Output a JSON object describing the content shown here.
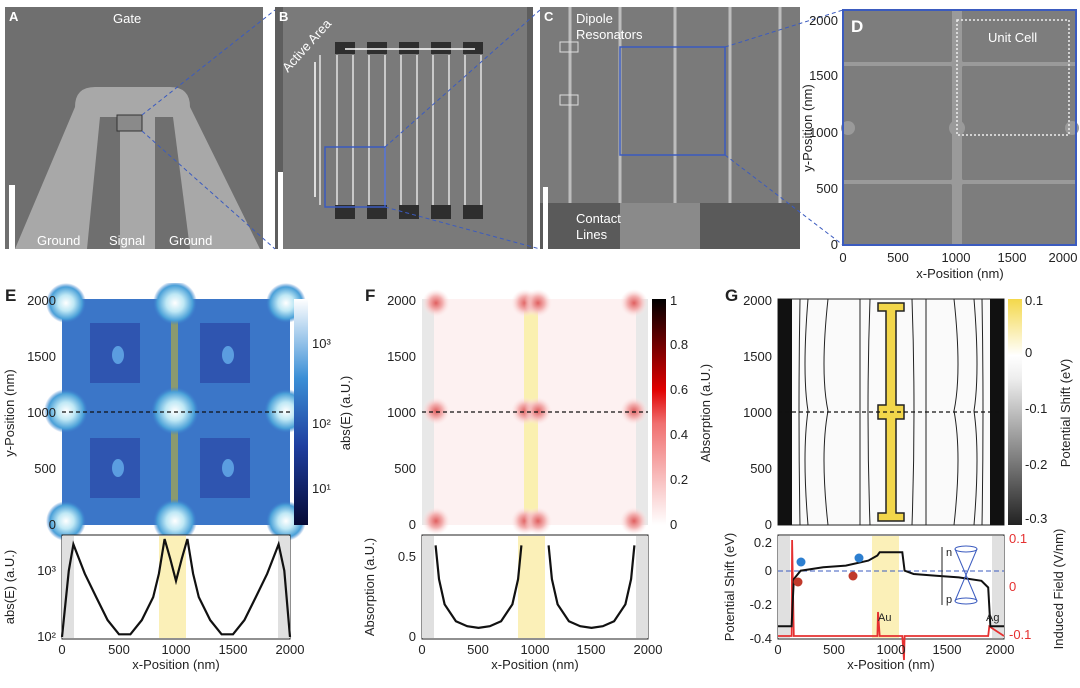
{
  "panels": {
    "A": {
      "label": "A",
      "gate": "Gate",
      "ground_left": "Ground",
      "signal": "Signal",
      "ground_right": "Ground"
    },
    "B": {
      "label": "B",
      "active_area": "Active Area"
    },
    "C": {
      "label": "C",
      "dipole": "Dipole",
      "resonators": "Resonators",
      "contact": "Contact",
      "lines": "Lines"
    },
    "D": {
      "label": "D",
      "unit_cell": "Unit Cell",
      "xlabel": "x-Position (nm)",
      "ylabel": "y-Position (nm)",
      "xticks": [
        "0",
        "500",
        "1000",
        "1500",
        "2000"
      ],
      "yticks": [
        "0",
        "500",
        "1000",
        "1500",
        "2000"
      ]
    },
    "E": {
      "label": "E",
      "ylabel_top": "y-Position (nm)",
      "cbar_label": "abs(E) (a.U.)",
      "cbar_ticks": [
        "10³",
        "10²",
        "10¹"
      ],
      "ylabel_bot": "abs(E) (a.U.)",
      "bot_yticks": [
        "10³",
        "10²"
      ],
      "xlabel": "x-Position (nm)",
      "xticks": [
        "0",
        "500",
        "1000",
        "1500",
        "2000"
      ],
      "yticks": [
        "0",
        "500",
        "1000",
        "1500",
        "2000"
      ]
    },
    "F": {
      "label": "F",
      "cbar_label": "Absorption (a.U.)",
      "cbar_ticks": [
        "1",
        "0.8",
        "0.6",
        "0.4",
        "0.2",
        "0"
      ],
      "ylabel_bot": "Absorption (a.U.)",
      "bot_yticks": [
        "0.5",
        "0"
      ],
      "xlabel": "x-Position (nm)",
      "xticks": [
        "0",
        "500",
        "1000",
        "1500",
        "2000"
      ],
      "yticks": [
        "0",
        "500",
        "1000",
        "1500",
        "2000"
      ]
    },
    "G": {
      "label": "G",
      "cbar_label": "Potential Shift (eV)",
      "cbar_ticks": [
        "0.1",
        "0",
        "-0.1",
        "-0.2",
        "-0.3"
      ],
      "ylabel_bot": "Potential Shift (eV)",
      "ylabel_right": "Induced Field (V/nm)",
      "bot_yticks": [
        "0.2",
        "0",
        "-0.2",
        "-0.4"
      ],
      "right_ticks": [
        "0.1",
        "0",
        "-0.1"
      ],
      "au": "Au",
      "ag": "Ag",
      "n": "n",
      "p": "p",
      "xlabel": "x-Position (nm)",
      "xticks": [
        "0",
        "500",
        "1000",
        "1500",
        "2000"
      ],
      "yticks": [
        "0",
        "500",
        "1000",
        "1500",
        "2000"
      ]
    }
  },
  "chart_data": [
    {
      "type": "line",
      "panel": "E",
      "title": "",
      "xlabel": "x-Position (nm)",
      "ylabel": "abs(E) (a.U.)",
      "yscale": "log",
      "xlim": [
        0,
        2000
      ],
      "ylim": [
        100,
        3000
      ],
      "series": [
        {
          "x": [
            0,
            60,
            100,
            150,
            200,
            300,
            400,
            500,
            600,
            700,
            800,
            850,
            900,
            950,
            1000,
            1050,
            1100,
            1150,
            1200,
            1300,
            1400,
            1500,
            1600,
            1700,
            1800,
            1850,
            1900,
            1950,
            2000
          ],
          "y": [
            100,
            1000,
            2500,
            1500,
            900,
            400,
            180,
            110,
            110,
            180,
            400,
            900,
            3000,
            1500,
            700,
            1500,
            3000,
            900,
            400,
            180,
            110,
            110,
            180,
            400,
            900,
            1500,
            2500,
            1000,
            100
          ]
        }
      ]
    },
    {
      "type": "line",
      "panel": "F",
      "title": "",
      "xlabel": "x-Position (nm)",
      "ylabel": "Absorption (a.U.)",
      "xlim": [
        0,
        2000
      ],
      "ylim": [
        0,
        0.6
      ],
      "series": [
        {
          "x": [
            120,
            150,
            200,
            300,
            400,
            500,
            600,
            700,
            800,
            850,
            880
          ],
          "y": [
            0.55,
            0.35,
            0.2,
            0.1,
            0.07,
            0.06,
            0.07,
            0.1,
            0.2,
            0.35,
            0.55
          ]
        },
        {
          "x": [
            1120,
            1150,
            1200,
            1300,
            1400,
            1500,
            1600,
            1700,
            1800,
            1850,
            1880
          ],
          "y": [
            0.55,
            0.35,
            0.2,
            0.1,
            0.07,
            0.06,
            0.07,
            0.1,
            0.2,
            0.35,
            0.55
          ]
        }
      ]
    },
    {
      "type": "line",
      "panel": "G",
      "title": "",
      "xlabel": "x-Position (nm)",
      "ylabel": "Potential Shift (eV)",
      "xlim": [
        0,
        2000
      ],
      "ylim": [
        -0.4,
        0.2
      ],
      "series": [
        {
          "x": [
            0,
            120,
            140,
            200,
            400,
            600,
            800,
            880,
            900,
            1100,
            1120,
            1200,
            1400,
            1600,
            1800,
            1860,
            1880,
            2000
          ],
          "y": [
            -0.33,
            -0.33,
            -0.05,
            0.0,
            0.02,
            0.03,
            0.06,
            0.09,
            0.11,
            0.11,
            0.0,
            -0.02,
            -0.03,
            -0.04,
            -0.06,
            -0.1,
            -0.33,
            -0.33
          ]
        },
        {
          "x": [
            0,
            120,
            125,
            140,
            300,
            800,
            880,
            885,
            900,
            1100,
            1115,
            1120,
            1200,
            1800,
            1860,
            1870,
            2000
          ],
          "y": [
            -0.1,
            -0.1,
            0.1,
            -0.1,
            -0.1,
            -0.1,
            -0.1,
            -0.05,
            -0.1,
            -0.1,
            -0.15,
            -0.1,
            -0.1,
            -0.1,
            -0.1,
            -0.08,
            -0.1
          ]
        }
      ]
    }
  ]
}
